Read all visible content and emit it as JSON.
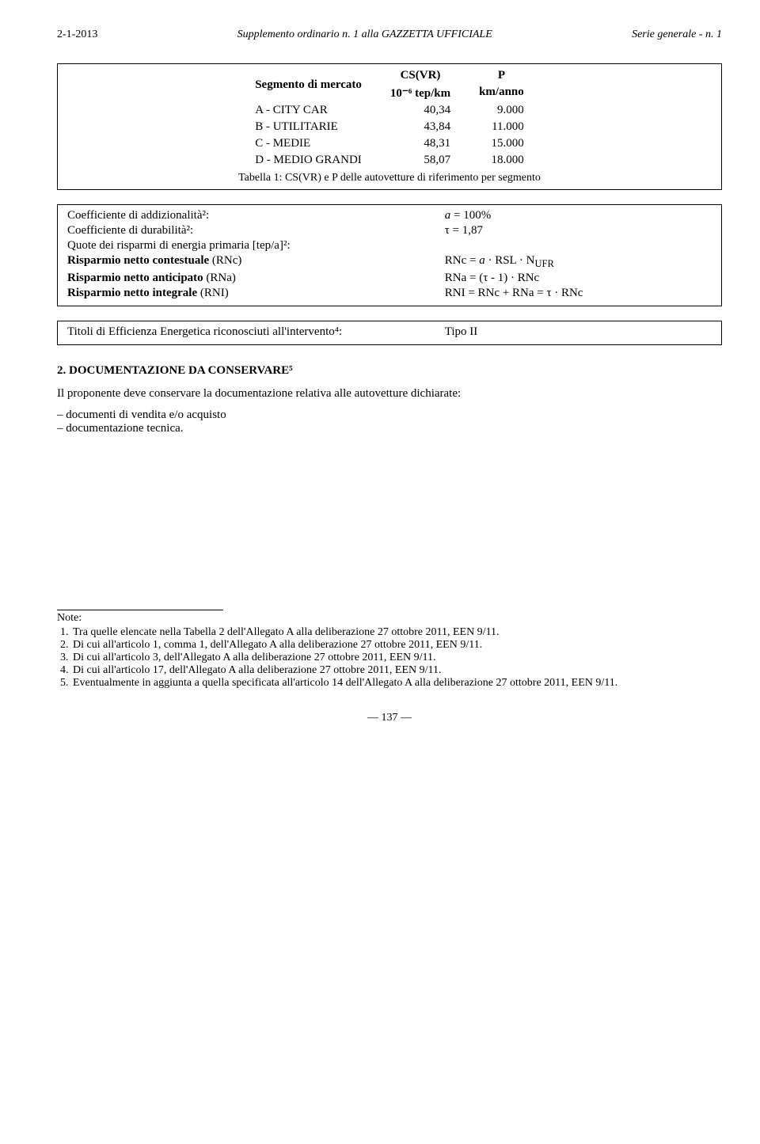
{
  "header": {
    "left": "2-1-2013",
    "center": "Supplemento ordinario n. 1 alla GAZZETTA UFFICIALE",
    "right": "Serie generale - n. 1"
  },
  "segTable": {
    "col_label": "Segmento di mercato",
    "col_cs_line1": "CS(VR)",
    "col_cs_line2": "10⁻⁶ tep/km",
    "col_p_line1": "P",
    "col_p_line2": "km/anno",
    "rows": [
      {
        "label": "A - CITY CAR",
        "cs": "40,34",
        "p": "9.000"
      },
      {
        "label": "B - UTILITARIE",
        "cs": "43,84",
        "p": "11.000"
      },
      {
        "label": "C - MEDIE",
        "cs": "48,31",
        "p": "15.000"
      },
      {
        "label": "D - MEDIO GRANDI",
        "cs": "58,07",
        "p": "18.000"
      }
    ],
    "caption": "Tabella 1: CS(VR) e P delle autovetture di riferimento per segmento"
  },
  "coef": {
    "row1_l": "Coefficiente di addizionalità²:",
    "row1_r_a": "a",
    "row1_r_rest": " = 100%",
    "row2_l": "Coefficiente di durabilità²:",
    "row2_r": "τ = 1,87",
    "row3_l": "Quote dei risparmi di energia primaria [tep/a]²:",
    "row4_l_pre": "Risparmio netto contestuale",
    "row4_l_post": "  (RNc)",
    "row4_r_pre": "RNc = ",
    "row4_r_a": "a",
    "row4_r_mid": " · RSL · N",
    "row4_r_sub": "UFR",
    "row5_l_pre": "Risparmio netto anticipato",
    "row5_l_post": " (RNa)",
    "row5_r": "RNa = (τ  - 1) · RNc",
    "row6_l_pre": "Risparmio netto integrale",
    "row6_l_post": "  (RNI)",
    "row6_r": "RNI = RNc + RNa = τ  · RNc"
  },
  "titolo": {
    "left": "Titoli di Efficienza Energetica riconosciuti all'intervento⁴:",
    "right": "Tipo II"
  },
  "section2": {
    "heading": "2.   DOCUMENTAZIONE DA CONSERVARE⁵",
    "intro": "Il proponente deve conservare la documentazione relativa alle autovetture dichiarate:",
    "bullets": [
      "documenti di vendita e/o acquisto",
      "documentazione tecnica."
    ]
  },
  "notes": {
    "label": "Note:",
    "items": [
      "Tra quelle elencate nella Tabella 2 dell'Allegato A alla deliberazione 27 ottobre 2011, EEN 9/11.",
      "Di cui all'articolo 1, comma 1, dell'Allegato A alla deliberazione 27 ottobre 2011, EEN 9/11.",
      "Di cui all'articolo 3, dell'Allegato A alla deliberazione 27 ottobre 2011, EEN 9/11.",
      "Di cui all'articolo 17, dell'Allegato A alla deliberazione 27 ottobre 2011, EEN 9/11.",
      "Eventualmente in aggiunta a quella specificata all'articolo 14 dell'Allegato A alla deliberazione 27 ottobre 2011, EEN 9/11."
    ]
  },
  "pageNumber": "— 137 —"
}
